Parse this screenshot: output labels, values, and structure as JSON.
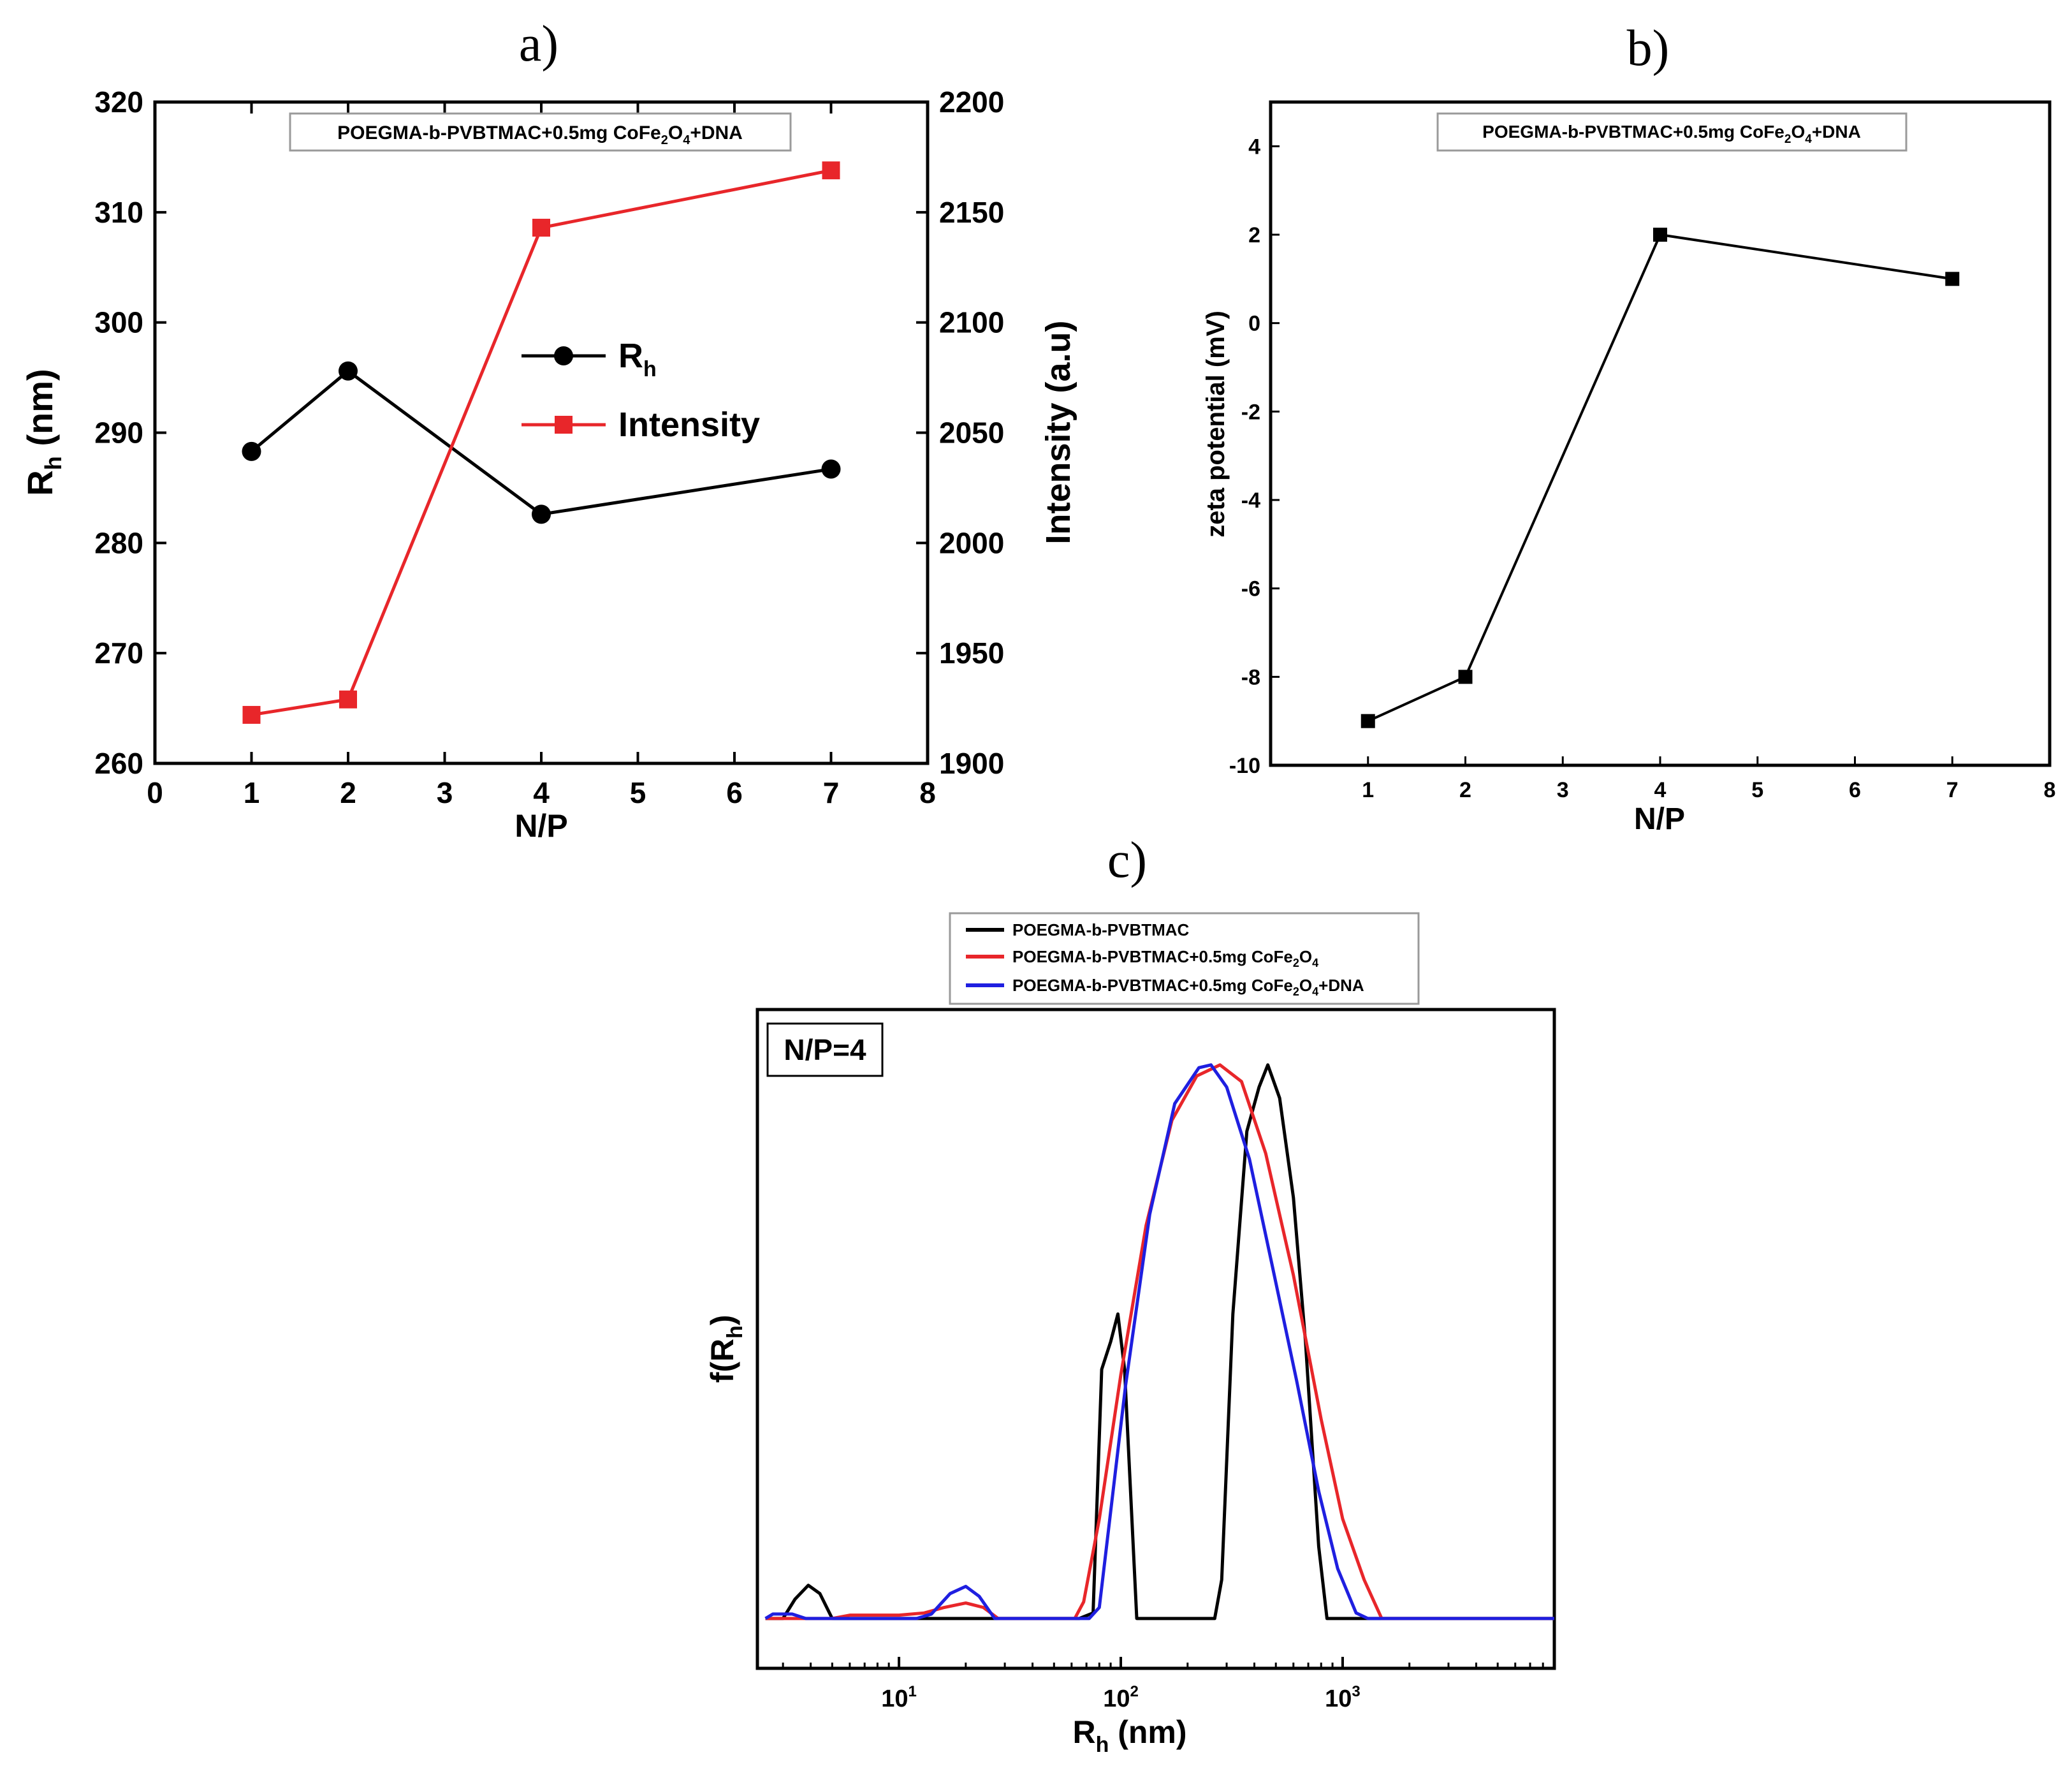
{
  "figure_labels": {
    "a": "a)",
    "b": "b)",
    "c": "c)"
  },
  "chart_data": [
    {
      "id": "a",
      "type": "line",
      "annotation": {
        "main": "POEGMA-b-PVBTMAC+0.5mg CoFe",
        "sub1": "2",
        "mid": "O",
        "sub2": "4",
        "tail": "+DNA"
      },
      "xlabel": "N/P",
      "ylabel": {
        "main": "R",
        "sub": "h",
        "tail": " (nm)"
      },
      "y2label": "Intensity (a.u)",
      "xlim": [
        0,
        8
      ],
      "ylim": [
        260,
        320
      ],
      "y2lim": [
        1900,
        2200
      ],
      "xticks": [
        "0",
        "1",
        "2",
        "3",
        "4",
        "5",
        "6",
        "7",
        "8"
      ],
      "yticks": [
        "260",
        "270",
        "280",
        "290",
        "300",
        "310",
        "320"
      ],
      "y2ticks": [
        "1900",
        "1950",
        "2000",
        "2050",
        "2100",
        "2150",
        "2200"
      ],
      "series": [
        {
          "name": "R",
          "name_sub": "h",
          "axis": "left",
          "marker": "circle",
          "color": "#000000",
          "x": [
            1,
            2,
            4,
            7
          ],
          "y": [
            288.3,
            295.6,
            282.6,
            286.7
          ]
        },
        {
          "name": "Intensity",
          "axis": "right",
          "marker": "square",
          "color": "#e8262a",
          "x": [
            1,
            2,
            4,
            7
          ],
          "y": [
            1922,
            1929,
            2143,
            2169
          ]
        }
      ]
    },
    {
      "id": "b",
      "type": "line",
      "annotation": {
        "main": "POEGMA-b-PVBTMAC+0.5mg CoFe",
        "sub1": "2",
        "mid": "O",
        "sub2": "4",
        "tail": "+DNA"
      },
      "xlabel": "N/P",
      "ylabel": "zeta potential (mV)",
      "xlim": [
        0,
        8
      ],
      "ylim": [
        -10,
        5
      ],
      "xticks": [
        "1",
        "2",
        "3",
        "4",
        "5",
        "6",
        "7",
        "8"
      ],
      "yticks": [
        "-10",
        "-8",
        "-6",
        "-4",
        "-2",
        "0",
        "2",
        "4"
      ],
      "series": [
        {
          "name": "zeta potential",
          "marker": "square",
          "color": "#000000",
          "x": [
            1,
            2,
            4,
            7
          ],
          "y": [
            -9,
            -8,
            2,
            1
          ]
        }
      ]
    },
    {
      "id": "c",
      "type": "line",
      "annotation": "N/P=4",
      "xlabel": {
        "main": "R",
        "sub": "h",
        "tail": " (nm)"
      },
      "ylabel": {
        "main": "f(R",
        "sub": "h",
        "tail": ")"
      },
      "xscale": "log",
      "xlim": [
        2.3,
        9000
      ],
      "ylim": [
        -0.09,
        1.1
      ],
      "xticks": [
        {
          "base": "10",
          "exp": "1"
        },
        {
          "base": "10",
          "exp": "2"
        },
        {
          "base": "10",
          "exp": "3"
        }
      ],
      "legend": [
        {
          "main": "POEGMA-b-PVBTMAC"
        },
        {
          "main": "POEGMA-b-PVBTMAC+0.5mg CoFe",
          "sub1": "2",
          "mid": "O",
          "sub2": "4",
          "tail": ""
        },
        {
          "main": "POEGMA-b-PVBTMAC+0.5mg CoFe",
          "sub1": "2",
          "mid": "O",
          "sub2": "4",
          "tail": "+DNA"
        }
      ],
      "series": [
        {
          "name": "POEGMA-b-PVBTMAC",
          "color": "#000000",
          "points": [
            [
              2.5,
              0
            ],
            [
              3.0,
              0
            ],
            [
              3.4,
              0.035
            ],
            [
              3.9,
              0.06
            ],
            [
              4.4,
              0.045
            ],
            [
              5.0,
              0
            ],
            [
              14,
              0
            ],
            [
              16,
              0
            ],
            [
              50,
              0
            ],
            [
              65,
              0
            ],
            [
              75,
              0.01
            ],
            [
              82,
              0.45
            ],
            [
              90,
              0.5
            ],
            [
              97,
              0.55
            ],
            [
              104,
              0.45
            ],
            [
              118,
              0
            ],
            [
              130,
              0
            ],
            [
              230,
              0
            ],
            [
              265,
              0
            ],
            [
              285,
              0.07
            ],
            [
              320,
              0.55
            ],
            [
              370,
              0.88
            ],
            [
              420,
              0.96
            ],
            [
              460,
              1.0
            ],
            [
              520,
              0.94
            ],
            [
              600,
              0.76
            ],
            [
              680,
              0.5
            ],
            [
              780,
              0.13
            ],
            [
              850,
              0
            ],
            [
              9000,
              0
            ]
          ]
        },
        {
          "name": "POEGMA-b-PVBTMAC+0.5mg CoFe2O4",
          "color": "#e8262a",
          "points": [
            [
              2.5,
              0
            ],
            [
              5.0,
              0
            ],
            [
              6.0,
              0.006
            ],
            [
              10,
              0.006
            ],
            [
              13,
              0.01
            ],
            [
              16,
              0.02
            ],
            [
              20,
              0.028
            ],
            [
              24,
              0.02
            ],
            [
              28,
              0
            ],
            [
              55,
              0
            ],
            [
              62,
              0
            ],
            [
              68,
              0.03
            ],
            [
              80,
              0.18
            ],
            [
              100,
              0.44
            ],
            [
              130,
              0.71
            ],
            [
              170,
              0.9
            ],
            [
              220,
              0.98
            ],
            [
              280,
              1.0
            ],
            [
              350,
              0.97
            ],
            [
              450,
              0.84
            ],
            [
              600,
              0.62
            ],
            [
              800,
              0.36
            ],
            [
              1000,
              0.18
            ],
            [
              1250,
              0.07
            ],
            [
              1500,
              0
            ],
            [
              9000,
              0
            ]
          ]
        },
        {
          "name": "POEGMA-b-PVBTMAC+0.5mg CoFe2O4+DNA",
          "color": "#1f1fe0",
          "points": [
            [
              2.5,
              0
            ],
            [
              2.7,
              0.008
            ],
            [
              3.3,
              0.008
            ],
            [
              3.8,
              0
            ],
            [
              6.5,
              0
            ],
            [
              12,
              0
            ],
            [
              14,
              0.008
            ],
            [
              17,
              0.045
            ],
            [
              20,
              0.058
            ],
            [
              23,
              0.04
            ],
            [
              27,
              0
            ],
            [
              72,
              0
            ],
            [
              80,
              0.02
            ],
            [
              88,
              0.16
            ],
            [
              105,
              0.42
            ],
            [
              135,
              0.73
            ],
            [
              175,
              0.93
            ],
            [
              225,
              0.995
            ],
            [
              255,
              1.0
            ],
            [
              300,
              0.96
            ],
            [
              380,
              0.83
            ],
            [
              480,
              0.64
            ],
            [
              620,
              0.43
            ],
            [
              780,
              0.23
            ],
            [
              950,
              0.09
            ],
            [
              1150,
              0.01
            ],
            [
              1300,
              0
            ],
            [
              9000,
              0
            ]
          ]
        }
      ]
    }
  ]
}
